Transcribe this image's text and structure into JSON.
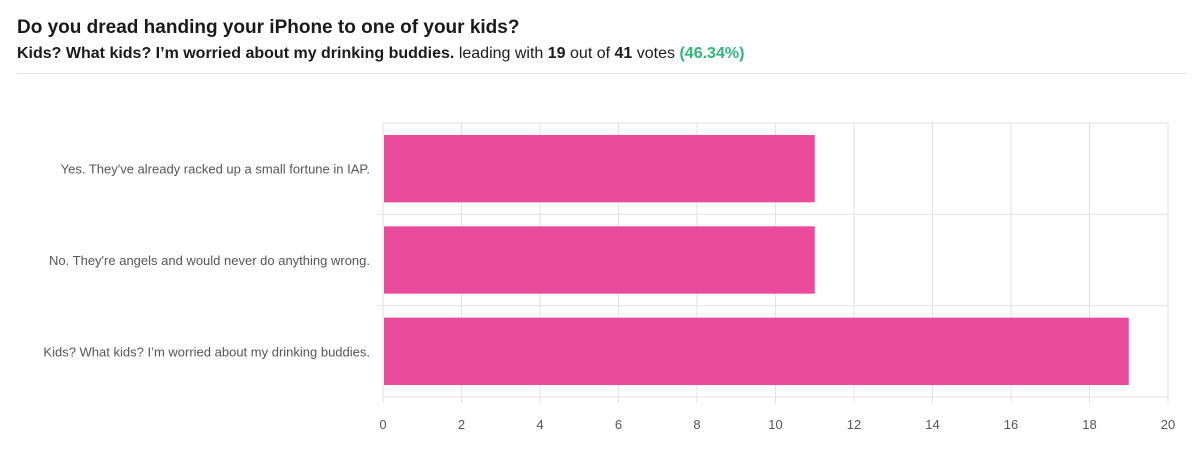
{
  "poll": {
    "question": "Do you dread handing your iPhone to one of your kids?",
    "leader": "Kids? What kids? I’m worried about my drinking buddies.",
    "leading_with_text": "leading with",
    "leader_votes": "19",
    "out_of_text": "out of",
    "total_votes": "41",
    "votes_text": "votes",
    "leader_percent": "(46.34%)"
  },
  "colors": {
    "bar": "#EA4A9B",
    "percent": "#2DB87A",
    "grid": "#e2e2e2",
    "axis_text": "#555555",
    "label_text": "#555555"
  },
  "chart_data": {
    "type": "bar",
    "orientation": "horizontal",
    "categories": [
      "Yes. They've already racked up a small fortune in IAP.",
      "No. They're angels and would never do anything wrong.",
      "Kids? What kids? I’m worried about my drinking buddies."
    ],
    "values": [
      11,
      11,
      19
    ],
    "xlim": [
      0,
      20
    ],
    "x_ticks": [
      "0",
      "2",
      "4",
      "6",
      "8",
      "10",
      "12",
      "14",
      "16",
      "18",
      "20"
    ],
    "grid": true
  }
}
